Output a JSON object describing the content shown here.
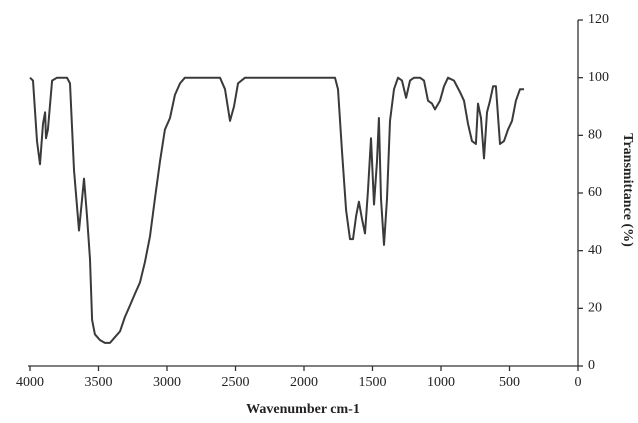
{
  "chart_data": {
    "type": "line",
    "x_label": "Wavenumber cm-1",
    "y_label": "Transmittance (%)",
    "x": [
      4000,
      3978,
      3949,
      3927,
      3905,
      3890,
      3883,
      3869,
      3839,
      3803,
      3766,
      3730,
      3708,
      3679,
      3642,
      3620,
      3606,
      3584,
      3562,
      3547,
      3526,
      3489,
      3453,
      3416,
      3380,
      3343,
      3307,
      3270,
      3234,
      3197,
      3161,
      3124,
      3088,
      3051,
      3015,
      2978,
      2942,
      2905,
      2869,
      2832,
      2759,
      2686,
      2613,
      2577,
      2540,
      2511,
      2482,
      2431,
      2321,
      2175,
      2029,
      1883,
      1774,
      1752,
      1723,
      1693,
      1664,
      1642,
      1620,
      1599,
      1577,
      1555,
      1533,
      1511,
      1489,
      1467,
      1453,
      1438,
      1416,
      1394,
      1372,
      1343,
      1314,
      1285,
      1255,
      1226,
      1197,
      1153,
      1124,
      1095,
      1066,
      1044,
      1007,
      978,
      949,
      905,
      861,
      832,
      803,
      774,
      745,
      730,
      708,
      686,
      664,
      642,
      620,
      599,
      569,
      540,
      511,
      482,
      453,
      423,
      394
    ],
    "values": [
      100,
      99,
      78,
      70,
      84,
      88,
      79,
      82,
      99,
      100,
      100,
      100,
      98,
      68,
      47,
      58,
      65,
      52,
      37,
      16,
      11,
      9,
      8,
      8,
      10,
      12,
      17,
      21,
      25,
      29,
      36,
      45,
      58,
      71,
      82,
      86,
      94,
      98,
      100,
      100,
      100,
      100,
      100,
      96,
      85,
      90,
      98,
      100,
      100,
      100,
      100,
      100,
      100,
      96,
      75,
      54,
      44,
      44,
      52,
      57,
      51,
      46,
      61,
      79,
      56,
      71,
      86,
      58,
      42,
      58,
      85,
      96,
      100,
      99,
      93,
      99,
      100,
      100,
      99,
      92,
      91,
      89,
      92,
      97,
      100,
      99,
      95,
      92,
      84,
      78,
      77,
      91,
      86,
      72,
      88,
      92,
      97,
      97,
      77,
      78,
      82,
      85,
      92,
      96,
      96
    ],
    "color": "#3a3a3a",
    "xlim": [
      4000,
      0
    ],
    "xticks": [
      4000,
      3500,
      3000,
      2500,
      2000,
      1500,
      1000,
      500,
      0
    ],
    "ylim": [
      0,
      120
    ],
    "yticks": [
      0,
      20,
      40,
      60,
      80,
      100,
      120
    ],
    "y_axis_side": "right",
    "grid": false
  }
}
